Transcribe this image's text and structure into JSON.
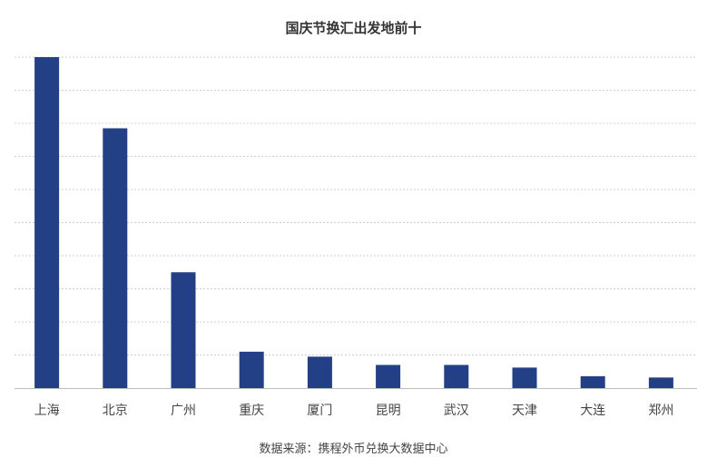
{
  "chart_data": {
    "type": "bar",
    "title": "国庆节换汇出发地前十",
    "source": "数据来源：携程外币兑换大数据中心",
    "categories": [
      "上海",
      "北京",
      "广州",
      "重庆",
      "厦门",
      "昆明",
      "武汉",
      "天津",
      "大连",
      "郑州"
    ],
    "values": [
      100,
      78.5,
      35,
      11,
      9.5,
      7,
      7,
      6.2,
      3.6,
      3.2
    ],
    "ylim": [
      0,
      100
    ],
    "grid": true,
    "bar_color": "#233F85",
    "grid_color": "#CFCFCF",
    "axis_color": "#BDBDBD",
    "xlabel": "",
    "ylabel": ""
  }
}
